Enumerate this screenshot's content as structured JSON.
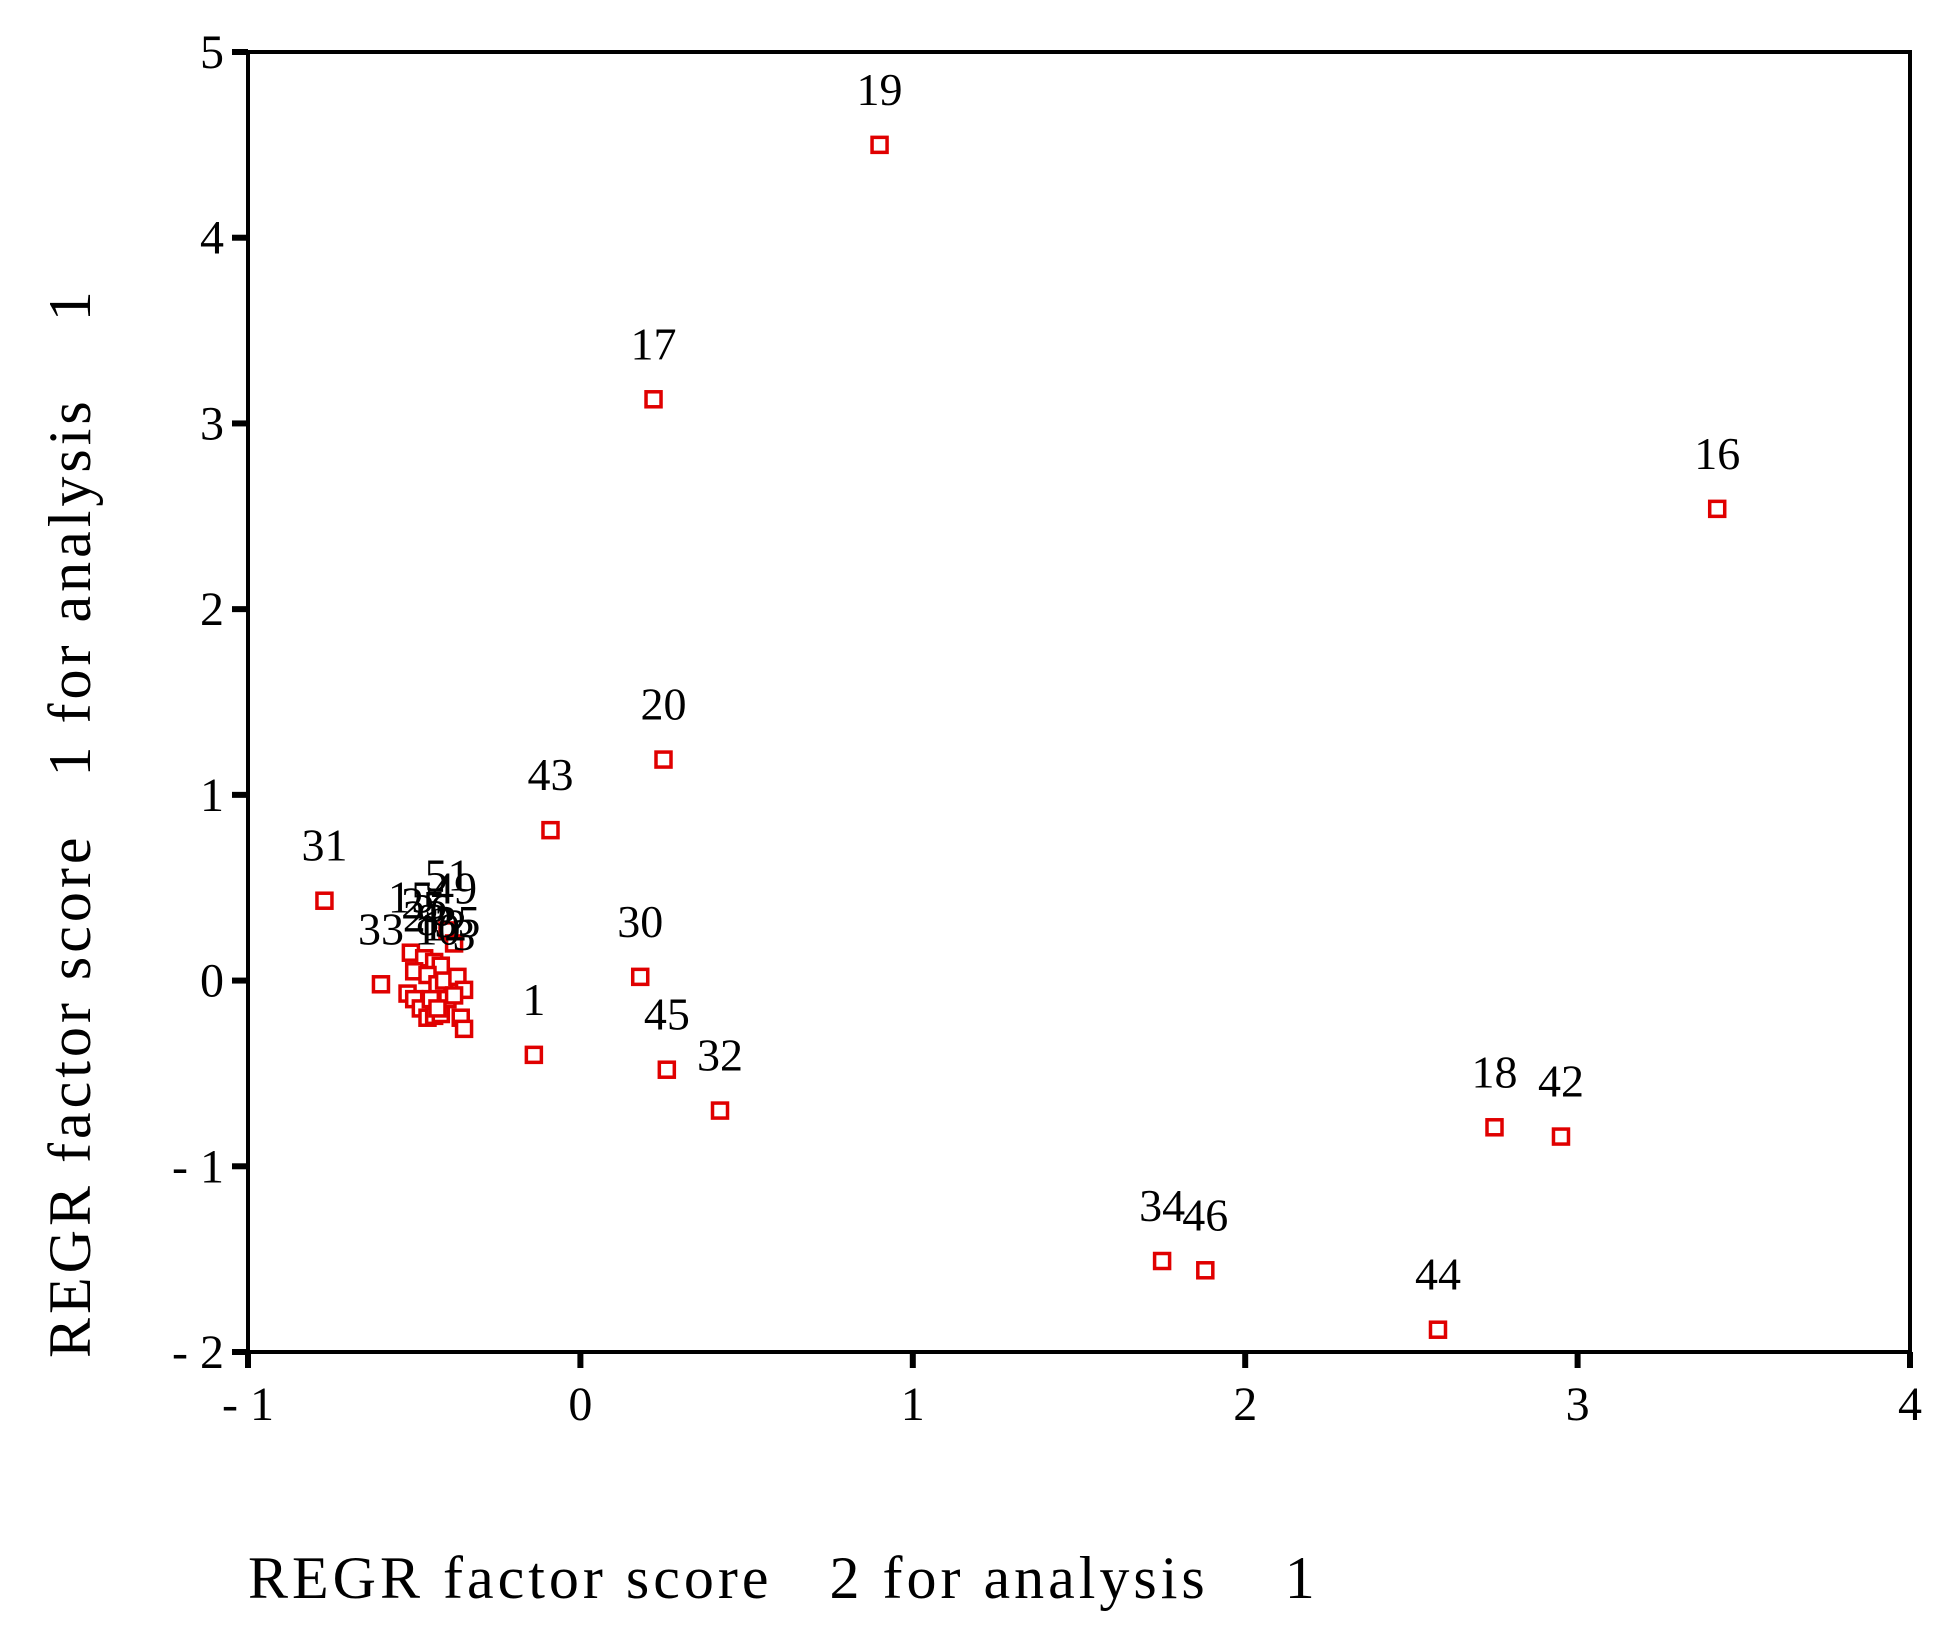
{
  "chart_data": {
    "type": "scatter",
    "xlabel": "REGR factor score   2 for analysis    1",
    "ylabel": "REGR factor score   1 for analysis    1",
    "xlim": [
      -1,
      4
    ],
    "ylim": [
      -2,
      5
    ],
    "x_ticks": [
      "- 1",
      "0",
      "1",
      "2",
      "3",
      "4"
    ],
    "y_ticks": [
      "- 2",
      "- 1",
      "0",
      "1",
      "2",
      "3",
      "4",
      "5"
    ],
    "marker_color": "#e00000",
    "grid": false,
    "points": [
      {
        "label": "19",
        "x": 0.9,
        "y": 4.5
      },
      {
        "label": "17",
        "x": 0.22,
        "y": 3.13
      },
      {
        "label": "16",
        "x": 3.42,
        "y": 2.54
      },
      {
        "label": "20",
        "x": 0.25,
        "y": 1.19
      },
      {
        "label": "43",
        "x": -0.09,
        "y": 0.81
      },
      {
        "label": "31",
        "x": -0.77,
        "y": 0.43
      },
      {
        "label": "30",
        "x": 0.18,
        "y": 0.02
      },
      {
        "label": "33",
        "x": -0.6,
        "y": -0.02
      },
      {
        "label": "1",
        "x": -0.14,
        "y": -0.4
      },
      {
        "label": "45",
        "x": 0.26,
        "y": -0.48
      },
      {
        "label": "32",
        "x": 0.42,
        "y": -0.7
      },
      {
        "label": "18",
        "x": 2.75,
        "y": -0.79
      },
      {
        "label": "42",
        "x": 2.95,
        "y": -0.84
      },
      {
        "label": "34",
        "x": 1.75,
        "y": -1.51
      },
      {
        "label": "46",
        "x": 1.88,
        "y": -1.56
      },
      {
        "label": "44",
        "x": 2.58,
        "y": -1.88
      },
      {
        "label": "51",
        "x": -0.4,
        "y": 0.27
      },
      {
        "label": "49",
        "x": -0.38,
        "y": 0.2
      },
      {
        "label": "15",
        "x": -0.51,
        "y": 0.15
      },
      {
        "label": "25",
        "x": -0.47,
        "y": 0.12
      },
      {
        "label": "2",
        "x": -0.5,
        "y": 0.05
      },
      {
        "label": "5",
        "x": -0.44,
        "y": 0.1
      },
      {
        "label": "6",
        "x": -0.42,
        "y": 0.08
      },
      {
        "label": "8",
        "x": -0.46,
        "y": 0.03
      },
      {
        "label": "10",
        "x": -0.43,
        "y": -0.02
      },
      {
        "label": "12",
        "x": -0.41,
        "y": 0.0
      },
      {
        "label": "35",
        "x": -0.37,
        "y": 0.02
      },
      {
        "label": "3",
        "x": -0.35,
        "y": -0.05
      },
      {
        "label": "",
        "x": -0.52,
        "y": -0.07
      },
      {
        "label": "",
        "x": -0.5,
        "y": -0.1
      },
      {
        "label": "",
        "x": -0.48,
        "y": -0.15
      },
      {
        "label": "",
        "x": -0.46,
        "y": -0.2
      },
      {
        "label": "",
        "x": -0.44,
        "y": -0.19
      },
      {
        "label": "",
        "x": -0.42,
        "y": -0.18
      },
      {
        "label": "",
        "x": -0.4,
        "y": -0.1
      },
      {
        "label": "",
        "x": -0.38,
        "y": -0.08
      },
      {
        "label": "",
        "x": -0.36,
        "y": -0.2
      },
      {
        "label": "",
        "x": -0.35,
        "y": -0.26
      },
      {
        "label": "",
        "x": -0.45,
        "y": -0.1
      },
      {
        "label": "",
        "x": -0.43,
        "y": -0.15
      }
    ]
  }
}
